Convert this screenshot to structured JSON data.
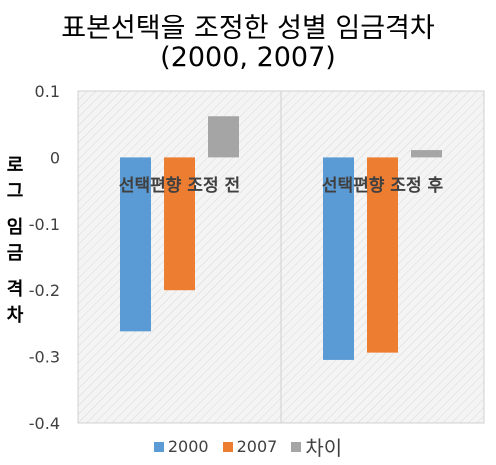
{
  "chart_data": {
    "type": "bar",
    "title": "표본선택을 조정한 성별 임금격차",
    "subtitle": "(2000, 2007)",
    "ylabel": "로그 임금 격차",
    "xlabel": "",
    "ylim": [
      -0.4,
      0.1
    ],
    "yticks": [
      "0.1",
      "0",
      "-0.1",
      "-0.2",
      "-0.3",
      "-0.4"
    ],
    "categories": [
      "선택편향 조정 전",
      "선택편향 조정 후"
    ],
    "series": [
      {
        "name": "2000",
        "color": "#5B9BD5",
        "values": [
          -0.262,
          -0.305
        ]
      },
      {
        "name": "2007",
        "color": "#ED7D31",
        "values": [
          -0.2,
          -0.294
        ]
      },
      {
        "name": "차이",
        "color": "#A5A5A5",
        "values": [
          0.062,
          0.011
        ]
      }
    ],
    "grid": false,
    "legend_position": "bottom"
  }
}
